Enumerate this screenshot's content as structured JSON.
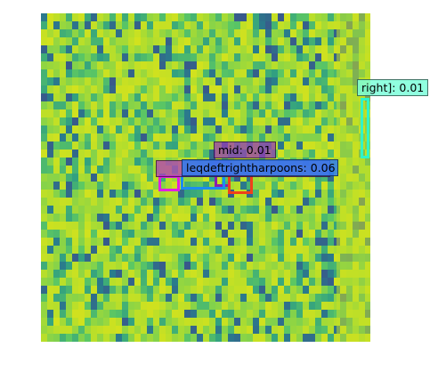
{
  "image": {
    "colormap": "viridis",
    "texture": "vertical-streaks"
  },
  "detections": [
    {
      "id": "right",
      "label": "right]: 0.01",
      "color": "#2ff5c8",
      "label_bg": "#7cffd9"
    },
    {
      "id": "mid",
      "label": "mid: 0.01",
      "color": "#8a1fb0",
      "label_bg": "#9a40b8"
    },
    {
      "id": "leftright",
      "label": "leqdeftrightharpoons: 0.06",
      "color": "#1c6cf5",
      "label_bg": "#2f7cf0"
    },
    {
      "id": "inner",
      "label": "",
      "color": "#f02a2a",
      "label_bg": "#f02a2a"
    },
    {
      "id": "magenta",
      "label": "",
      "color": "#e020e0",
      "label_bg": "#e020e0"
    }
  ]
}
